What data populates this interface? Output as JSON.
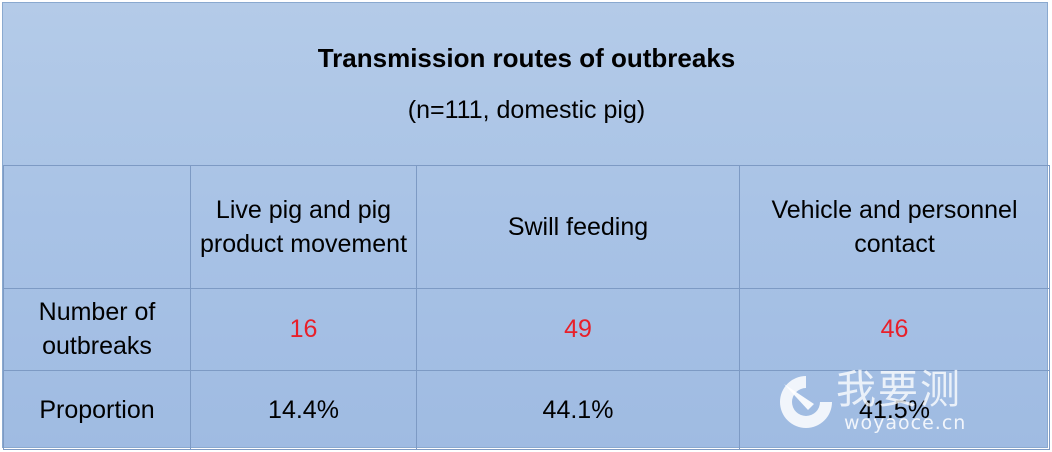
{
  "table": {
    "title": "Transmission routes of outbreaks",
    "subtitle": "(n=111, domestic pig)",
    "columns": [
      "",
      "Live pig and pig product movement",
      "Swill feeding",
      "Vehicle and personnel contact"
    ],
    "rows": [
      {
        "label": "Number of outbreaks",
        "values": [
          "16",
          "49",
          "46"
        ]
      },
      {
        "label": "Proportion",
        "values": [
          "14.4%",
          "44.1%",
          "41.5%"
        ]
      }
    ],
    "highlight_color": "#e8202a"
  },
  "watermark": {
    "text": "我要测",
    "url": "woyaoce.cn"
  }
}
